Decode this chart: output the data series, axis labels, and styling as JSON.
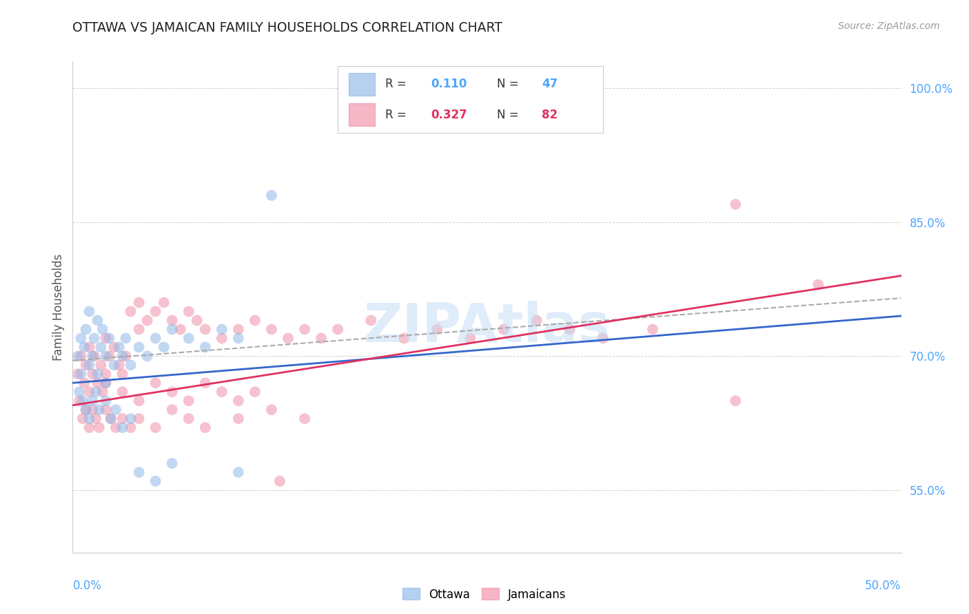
{
  "title": "OTTAWA VS JAMAICAN FAMILY HOUSEHOLDS CORRELATION CHART",
  "source": "Source: ZipAtlas.com",
  "ylabel": "Family Households",
  "yaxis_ticks": [
    55.0,
    70.0,
    85.0,
    100.0
  ],
  "yaxis_labels": [
    "55.0%",
    "70.0%",
    "85.0%",
    "100.0%"
  ],
  "xmin": 0.0,
  "xmax": 50.0,
  "ymin": 48.0,
  "ymax": 103.0,
  "watermark_text": "ZIPAtlas",
  "ottawa_color": "#90b8e8",
  "jamaican_color": "#f090a8",
  "ottawa_R": 0.11,
  "ottawa_N": 47,
  "jamaican_R": 0.327,
  "jamaican_N": 82,
  "background_color": "#ffffff",
  "grid_color": "#bbbbbb",
  "title_color": "#222222",
  "right_axis_color": "#4da6ff",
  "legend_R_color": "#4da6ff",
  "legend_N1_color": "#4da6ff",
  "legend_N2_color": "#e03060",
  "legend_R2_color": "#e03060",
  "ottawa_line_color": "#3366cc",
  "jamaican_line_color": "#e03060",
  "dashed_line_color": "#aaaaaa",
  "ottawa_scatter_x": [
    0.3,
    0.5,
    0.5,
    0.7,
    0.8,
    1.0,
    1.0,
    1.2,
    1.3,
    1.5,
    1.5,
    1.7,
    1.8,
    2.0,
    2.0,
    2.2,
    2.5,
    2.8,
    3.0,
    3.2,
    3.5,
    4.0,
    4.5,
    5.0,
    5.5,
    6.0,
    7.0,
    8.0,
    9.0,
    10.0,
    0.4,
    0.6,
    0.8,
    1.0,
    1.2,
    1.4,
    1.6,
    2.0,
    2.3,
    2.6,
    3.0,
    3.5,
    4.0,
    5.0,
    6.0,
    10.0,
    12.0
  ],
  "ottawa_scatter_y": [
    70.0,
    72.0,
    68.0,
    71.0,
    73.0,
    69.0,
    75.0,
    70.0,
    72.0,
    68.0,
    74.0,
    71.0,
    73.0,
    70.0,
    67.0,
    72.0,
    69.0,
    71.0,
    70.0,
    72.0,
    69.0,
    71.0,
    70.0,
    72.0,
    71.0,
    73.0,
    72.0,
    71.0,
    73.0,
    72.0,
    66.0,
    65.0,
    64.0,
    63.0,
    65.0,
    66.0,
    64.0,
    65.0,
    63.0,
    64.0,
    62.0,
    63.0,
    57.0,
    56.0,
    58.0,
    57.0,
    88.0
  ],
  "jamaican_scatter_x": [
    0.3,
    0.5,
    0.7,
    0.8,
    1.0,
    1.0,
    1.2,
    1.3,
    1.5,
    1.7,
    1.8,
    2.0,
    2.0,
    2.2,
    2.5,
    2.8,
    3.0,
    3.2,
    3.5,
    4.0,
    4.0,
    4.5,
    5.0,
    5.5,
    6.0,
    6.5,
    7.0,
    7.5,
    8.0,
    9.0,
    10.0,
    11.0,
    12.0,
    13.0,
    14.0,
    15.0,
    16.0,
    18.0,
    20.0,
    22.0,
    24.0,
    26.0,
    28.0,
    30.0,
    32.0,
    35.0,
    40.0,
    45.0,
    0.4,
    0.6,
    0.8,
    1.0,
    1.2,
    1.4,
    1.6,
    2.0,
    2.3,
    2.6,
    3.0,
    3.5,
    4.0,
    5.0,
    6.0,
    7.0,
    8.0,
    10.0,
    12.0,
    14.0,
    2.0,
    3.0,
    4.0,
    5.0,
    6.0,
    7.0,
    8.0,
    9.0,
    10.0,
    11.0,
    12.5,
    40.0
  ],
  "jamaican_scatter_y": [
    68.0,
    70.0,
    67.0,
    69.0,
    66.0,
    71.0,
    68.0,
    70.0,
    67.0,
    69.0,
    66.0,
    68.0,
    72.0,
    70.0,
    71.0,
    69.0,
    68.0,
    70.0,
    75.0,
    73.0,
    76.0,
    74.0,
    75.0,
    76.0,
    74.0,
    73.0,
    75.0,
    74.0,
    73.0,
    72.0,
    73.0,
    74.0,
    73.0,
    72.0,
    73.0,
    72.0,
    73.0,
    74.0,
    72.0,
    73.0,
    72.0,
    73.0,
    74.0,
    73.0,
    72.0,
    73.0,
    65.0,
    78.0,
    65.0,
    63.0,
    64.0,
    62.0,
    64.0,
    63.0,
    62.0,
    64.0,
    63.0,
    62.0,
    63.0,
    62.0,
    63.0,
    62.0,
    64.0,
    63.0,
    62.0,
    63.0,
    64.0,
    63.0,
    67.0,
    66.0,
    65.0,
    67.0,
    66.0,
    65.0,
    67.0,
    66.0,
    65.0,
    66.0,
    56.0,
    87.0
  ]
}
